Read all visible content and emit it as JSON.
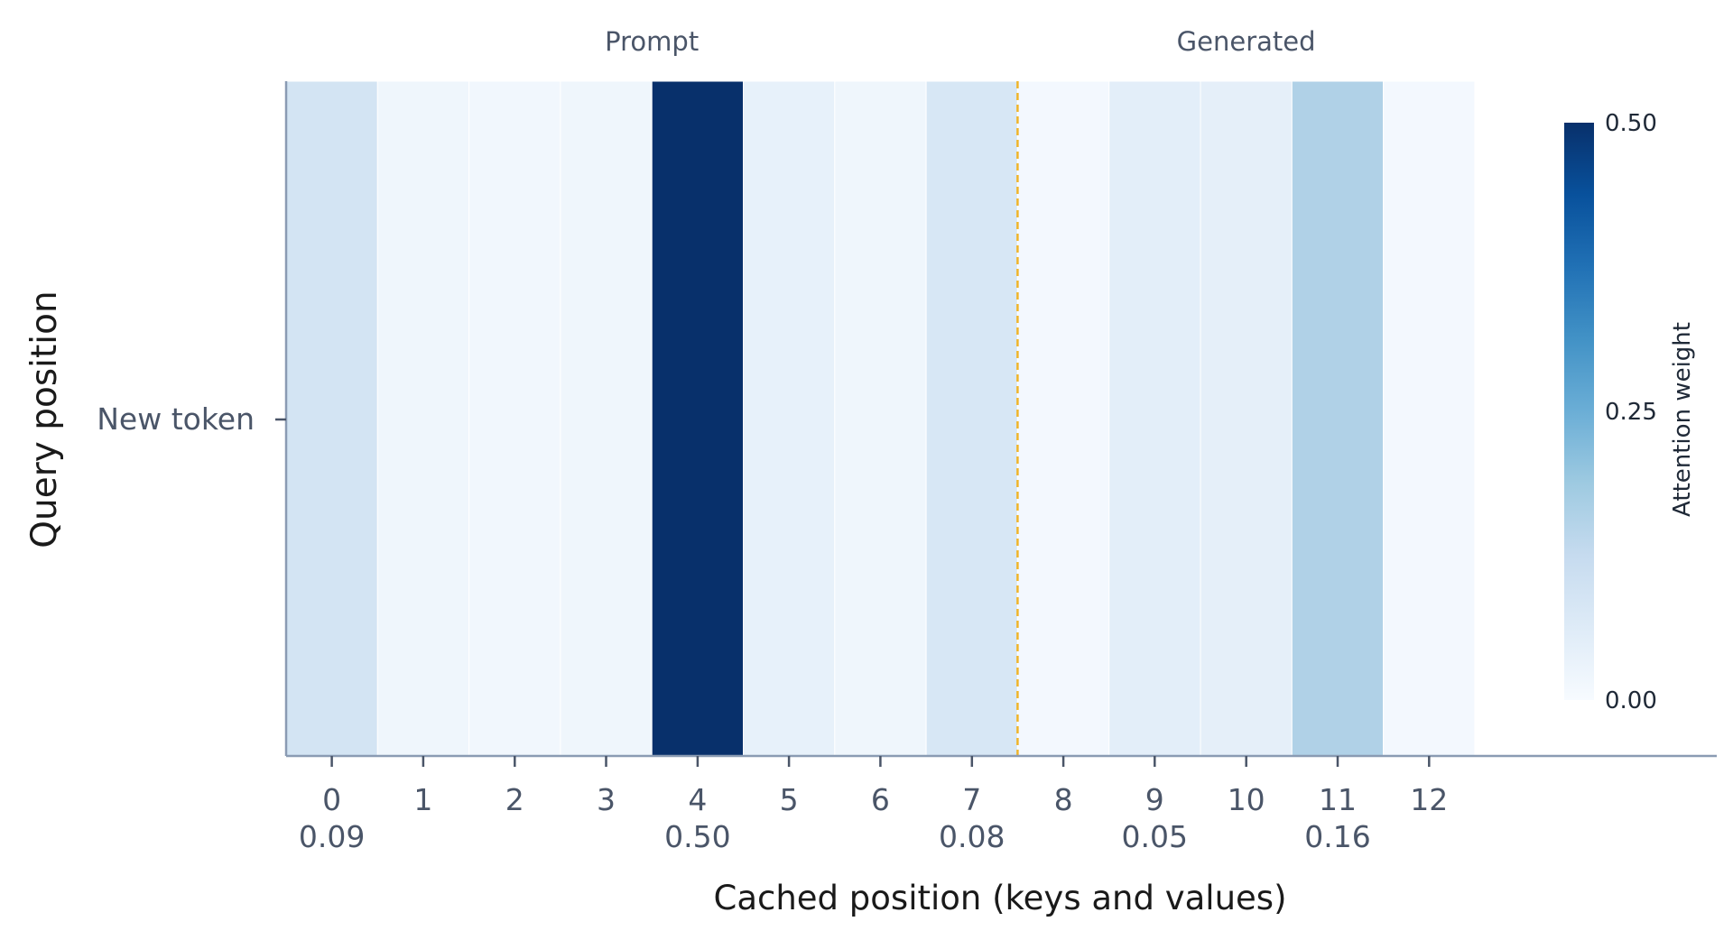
{
  "chart_data": {
    "type": "heatmap",
    "title": "",
    "xlabel": "Cached position (keys and values)",
    "ylabel": "Query position",
    "y_categories": [
      "New token"
    ],
    "x_categories": [
      "0",
      "1",
      "2",
      "3",
      "4",
      "5",
      "6",
      "7",
      "8",
      "9",
      "10",
      "11",
      "12"
    ],
    "values": [
      0.09,
      0.02,
      0.015,
      0.02,
      0.5,
      0.04,
      0.02,
      0.08,
      0.01,
      0.05,
      0.045,
      0.16,
      0.01
    ],
    "value_labels": [
      "0.09",
      "",
      "",
      "",
      "0.50",
      "",
      "",
      "0.08",
      "",
      "0.05",
      "",
      "0.16",
      ""
    ],
    "segment_labels": [
      {
        "label": "Prompt",
        "from": 0,
        "to": 7
      },
      {
        "label": "Generated",
        "from": 8,
        "to": 12
      }
    ],
    "boundary_after_index": 7,
    "boundary_color": "#f0b429",
    "colorbar": {
      "label": "Attention weight",
      "min": 0,
      "max": 0.5,
      "ticks": [
        "0.00",
        "0.25",
        "0.50"
      ],
      "colormap": "Blues"
    },
    "grid": false
  }
}
